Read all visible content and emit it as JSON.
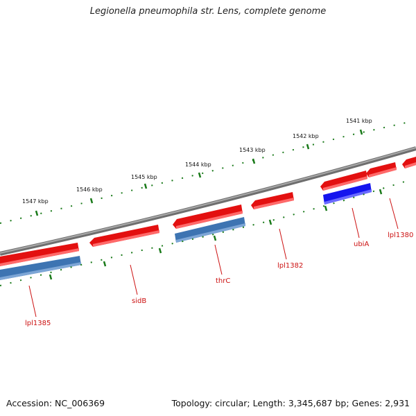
{
  "title": "Legionella pneumophila str. Lens, complete genome",
  "footer": {
    "accession": "Accession: NC_006369",
    "summary": "Topology: circular; Length: 3,345,687 bp; Genes: 2,931"
  },
  "colors": {
    "backbone": "#8a8a8a",
    "forward_gene": "#ee1111",
    "reverse_gene": "#3d74b2",
    "reverse_highlight": "#1111ee",
    "ruler": "#1a7a1a",
    "label": "#cc1111"
  },
  "ruler": {
    "unit": "kbp",
    "ticks": [
      "1541 kbp",
      "1542 kbp",
      "1543 kbp",
      "1544 kbp",
      "1545 kbp",
      "1546 kbp",
      "1547 kbp"
    ]
  },
  "genes": [
    "lpl1385",
    "sidB",
    "thrC",
    "lpl1382",
    "ubiA",
    "lpl1380"
  ]
}
